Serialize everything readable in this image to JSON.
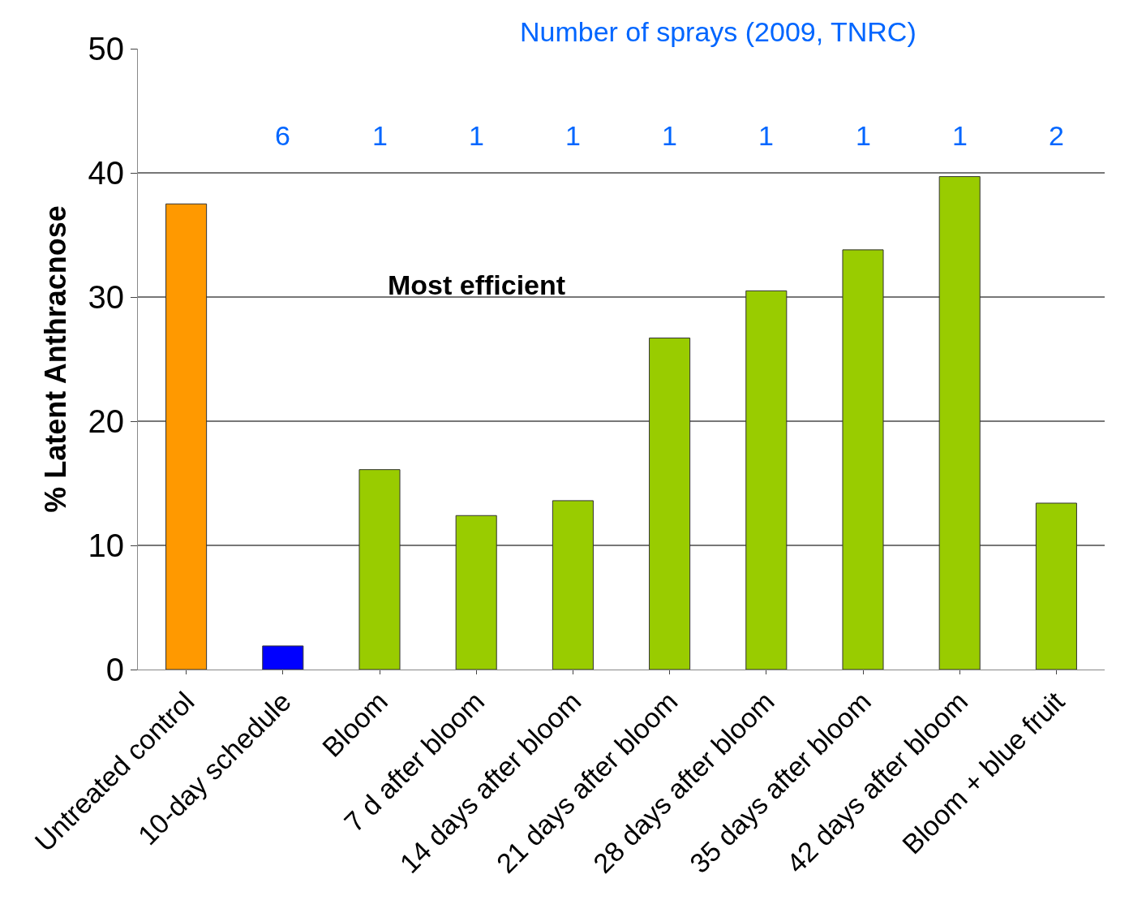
{
  "chart_data": {
    "type": "bar",
    "ylabel": "% Latent Anthracnose",
    "categories": [
      "Untreated control",
      "10-day schedule",
      "Bloom",
      "7 d after bloom",
      "14 days after bloom",
      "21 days after bloom",
      "28 days after bloom",
      "35 days after bloom",
      "42 days after bloom",
      "Bloom + blue fruit"
    ],
    "values": [
      37.5,
      1.9,
      16.1,
      12.4,
      13.6,
      26.7,
      30.5,
      33.8,
      39.7,
      13.4
    ],
    "colors": [
      "#ff9900",
      "#0000ff",
      "#99cc00",
      "#99cc00",
      "#99cc00",
      "#99cc00",
      "#99cc00",
      "#99cc00",
      "#99cc00",
      "#99cc00"
    ],
    "ylim": [
      0,
      50
    ],
    "yticks": [
      0,
      10,
      20,
      30,
      40,
      50
    ],
    "grid": "y",
    "annotations": [
      "Number of sprays (2009, TNRC)",
      "6",
      "1",
      "1",
      "1",
      "1",
      "1",
      "1",
      "1",
      "2",
      "Most efficient"
    ]
  }
}
